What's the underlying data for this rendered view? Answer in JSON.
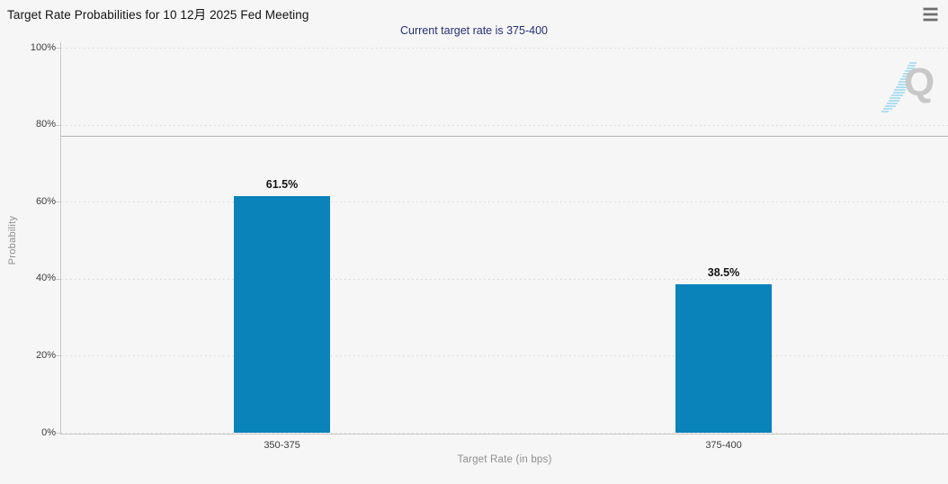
{
  "header": {
    "title": "Target Rate Probabilities for 10 12月 2025 Fed Meeting",
    "menu_icon": "hamburger-menu"
  },
  "watermark_letter": "Q",
  "chart_data": {
    "type": "bar",
    "title": "Target Rate Probabilities for 10 12月 2025 Fed Meeting",
    "subtitle": "Current target rate is 375-400",
    "categories": [
      "350-375",
      "375-400"
    ],
    "values": [
      61.5,
      38.5
    ],
    "value_labels": [
      "61.5%",
      "38.5%"
    ],
    "xlabel": "Target Rate (in bps)",
    "ylabel": "Probability",
    "ylim": [
      0,
      100
    ],
    "yticks": [
      0,
      20,
      40,
      60,
      80,
      100
    ],
    "ytick_labels": [
      "0%",
      "20%",
      "40%",
      "60%",
      "80%",
      "100%"
    ],
    "grid": "horizontal-dotted",
    "legend": "none",
    "reference_line_pct": 77,
    "colors": {
      "bar": "#0a82ba",
      "subtitle": "#25307c",
      "axis": "#c9c9c9",
      "grid": "#d8d8d8",
      "reference_line": "#b3b3b3",
      "muted_text": "#8e8e8e"
    }
  }
}
